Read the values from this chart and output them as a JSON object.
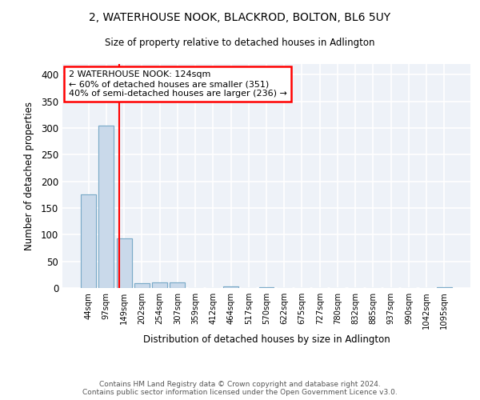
{
  "title": "2, WATERHOUSE NOOK, BLACKROD, BOLTON, BL6 5UY",
  "subtitle": "Size of property relative to detached houses in Adlington",
  "xlabel": "Distribution of detached houses by size in Adlington",
  "ylabel": "Number of detached properties",
  "bar_labels": [
    "44sqm",
    "97sqm",
    "149sqm",
    "202sqm",
    "254sqm",
    "307sqm",
    "359sqm",
    "412sqm",
    "464sqm",
    "517sqm",
    "570sqm",
    "622sqm",
    "675sqm",
    "727sqm",
    "780sqm",
    "832sqm",
    "885sqm",
    "937sqm",
    "990sqm",
    "1042sqm",
    "1095sqm"
  ],
  "bar_values": [
    175,
    305,
    93,
    9,
    10,
    11,
    0,
    0,
    3,
    0,
    2,
    0,
    0,
    0,
    0,
    0,
    0,
    0,
    0,
    0,
    2
  ],
  "bar_color": "#c9d9ea",
  "bar_edge_color": "#7aaac8",
  "property_line_x": 1.72,
  "annotation_text": "2 WATERHOUSE NOOK: 124sqm\n← 60% of detached houses are smaller (351)\n40% of semi-detached houses are larger (236) →",
  "annotation_box_color": "white",
  "annotation_box_edge_color": "red",
  "vline_color": "red",
  "ylim": [
    0,
    420
  ],
  "yticks": [
    0,
    50,
    100,
    150,
    200,
    250,
    300,
    350,
    400
  ],
  "background_color": "#eef2f8",
  "grid_color": "white",
  "footer_line1": "Contains HM Land Registry data © Crown copyright and database right 2024.",
  "footer_line2": "Contains public sector information licensed under the Open Government Licence v3.0."
}
